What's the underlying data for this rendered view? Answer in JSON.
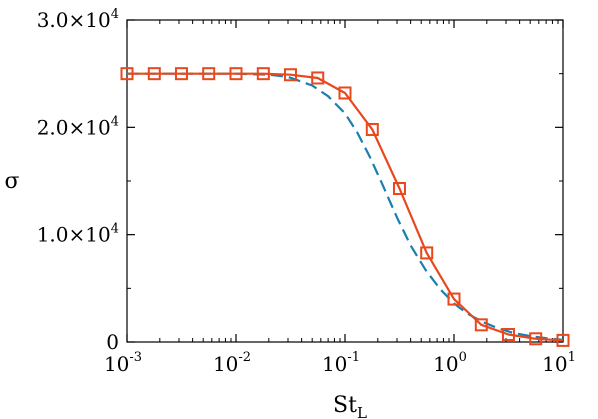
{
  "chart_data": {
    "type": "line",
    "xlabel": "St",
    "xlabel_sub": "L",
    "ylabel": "σ",
    "xscale": "log",
    "xlim": [
      0.001,
      10
    ],
    "ylim": [
      0,
      30000
    ],
    "x_ticks": [
      {
        "value": 0.001,
        "base": "10",
        "exp": "-3"
      },
      {
        "value": 0.01,
        "base": "10",
        "exp": "-2"
      },
      {
        "value": 0.1,
        "base": "10",
        "exp": "-1"
      },
      {
        "value": 1,
        "base": "10",
        "exp": "0"
      },
      {
        "value": 10,
        "base": "10",
        "exp": "1"
      }
    ],
    "y_ticks": [
      {
        "value": 0,
        "mant": "0",
        "exp": ""
      },
      {
        "value": 10000,
        "mant": "1.0×10",
        "exp": "4"
      },
      {
        "value": 20000,
        "mant": "2.0×10",
        "exp": "4"
      },
      {
        "value": 30000,
        "mant": "3.0×10",
        "exp": "4"
      }
    ],
    "grid": false,
    "legend": "none",
    "series": [
      {
        "style": "solid-squares",
        "color": "#e8481c",
        "x": [
          0.001,
          0.00178,
          0.00316,
          0.00562,
          0.01,
          0.0178,
          0.0316,
          0.0562,
          0.1,
          0.178,
          0.316,
          0.562,
          1.0,
          1.78,
          3.16,
          5.62,
          10
        ],
        "values": [
          25000,
          25000,
          25000,
          25000,
          25000,
          25000,
          24900,
          24600,
          23200,
          19800,
          14300,
          8300,
          4000,
          1600,
          700,
          300,
          150
        ]
      },
      {
        "style": "dashed",
        "color": "#1a7fb0",
        "x": [
          0.001,
          0.002,
          0.005,
          0.01,
          0.02,
          0.03,
          0.05,
          0.07,
          0.1,
          0.13,
          0.17,
          0.22,
          0.3,
          0.4,
          0.55,
          0.75,
          1.0,
          1.3,
          1.8,
          2.5,
          3.5,
          5.0,
          7.0,
          10
        ],
        "values": [
          25000,
          25000,
          25000,
          25000,
          24900,
          24700,
          23900,
          22900,
          21300,
          19500,
          17200,
          14700,
          11600,
          9000,
          6700,
          4900,
          3600,
          2700,
          1900,
          1300,
          850,
          550,
          350,
          200
        ]
      }
    ]
  }
}
